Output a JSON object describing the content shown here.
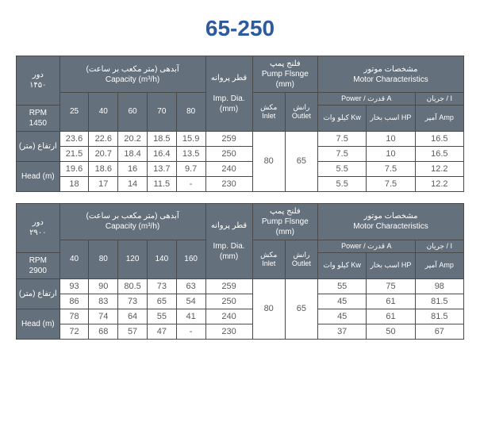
{
  "title": "65-250",
  "labels": {
    "rpm_fa": "دور",
    "capacity_fa": "آبدهی (متر مکعب بر ساعت)",
    "capacity_en": "Capacity (m³/h)",
    "impdia_fa": "قطر پروانه",
    "impdia_en": "Imp. Dia. (mm)",
    "flange_fa": "فلنج پمپ",
    "flange_en": "Pump Flsnge (mm)",
    "motor_fa": "مشخصات موتور",
    "motor_en": "Motor Characteristics",
    "inlet_fa": "مکش",
    "inlet_en": "Inlet",
    "outlet_fa": "رانش",
    "outlet_en": "Outlet",
    "power_line": "Power / قدرت A",
    "amp_line": "جریان / I",
    "kw": "کیلو وات Kw",
    "hp": "اسب بخار HP",
    "amp": "آمپر Amp",
    "head_fa": "ارتفاع (متر)",
    "head_en": "Head (m)",
    "rpm_en": "RPM"
  },
  "tables": [
    {
      "rpm_fa": "۱۴۵۰",
      "rpm_num": "1450",
      "caps": [
        "25",
        "40",
        "60",
        "70",
        "80"
      ],
      "inlet": "80",
      "outlet": "65",
      "rows": [
        {
          "head": [
            "23.6",
            "22.6",
            "20.2",
            "18.5",
            "15.9"
          ],
          "dia": "259",
          "kw": "7.5",
          "hp": "10",
          "amp": "16.5"
        },
        {
          "head": [
            "21.5",
            "20.7",
            "18.4",
            "16.4",
            "13.5"
          ],
          "dia": "250",
          "kw": "7.5",
          "hp": "10",
          "amp": "16.5"
        },
        {
          "head": [
            "19.6",
            "18.6",
            "16",
            "13.7",
            "9.7"
          ],
          "dia": "240",
          "kw": "5.5",
          "hp": "7.5",
          "amp": "12.2"
        },
        {
          "head": [
            "18",
            "17",
            "14",
            "11.5",
            "-"
          ],
          "dia": "230",
          "kw": "5.5",
          "hp": "7.5",
          "amp": "12.2"
        }
      ]
    },
    {
      "rpm_fa": "۲۹۰۰",
      "rpm_num": "2900",
      "caps": [
        "40",
        "80",
        "120",
        "140",
        "160"
      ],
      "inlet": "80",
      "outlet": "65",
      "rows": [
        {
          "head": [
            "93",
            "90",
            "80.5",
            "73",
            "63"
          ],
          "dia": "259",
          "kw": "55",
          "hp": "75",
          "amp": "98"
        },
        {
          "head": [
            "86",
            "83",
            "73",
            "65",
            "54"
          ],
          "dia": "250",
          "kw": "45",
          "hp": "61",
          "amp": "81.5"
        },
        {
          "head": [
            "78",
            "74",
            "64",
            "55",
            "41"
          ],
          "dia": "240",
          "kw": "45",
          "hp": "61",
          "amp": "81.5"
        },
        {
          "head": [
            "72",
            "68",
            "57",
            "47",
            "-"
          ],
          "dia": "230",
          "kw": "37",
          "hp": "50",
          "amp": "67"
        }
      ]
    }
  ]
}
